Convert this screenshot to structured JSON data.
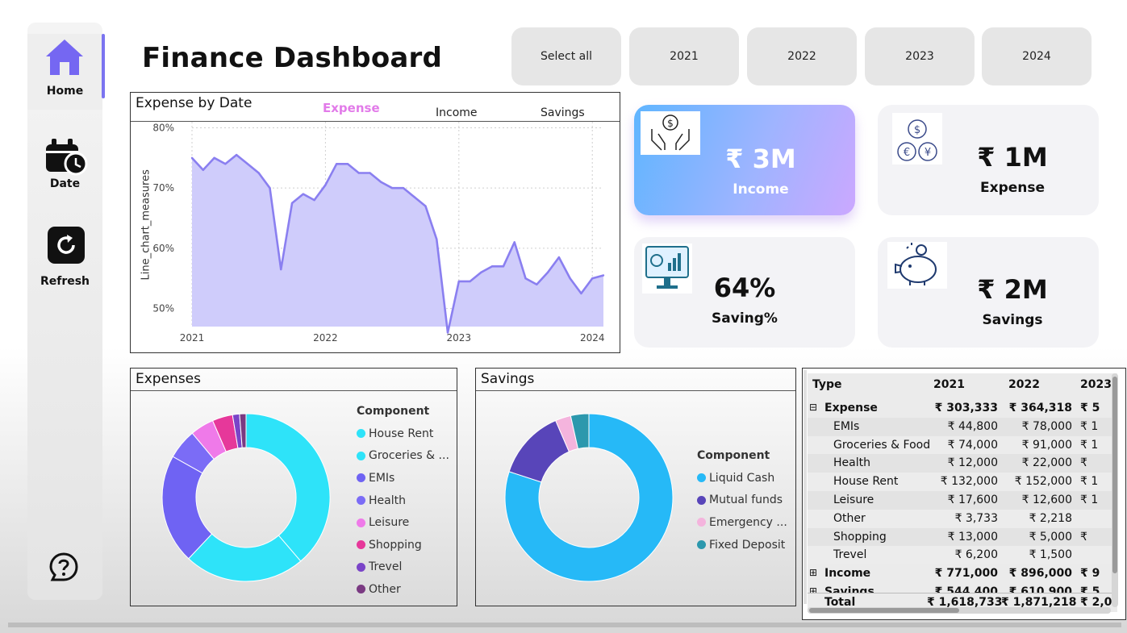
{
  "sidebar": {
    "items": [
      {
        "label": "Home",
        "icon": "home-icon"
      },
      {
        "label": "Date",
        "icon": "calendar-clock-icon"
      },
      {
        "label": "Refresh",
        "icon": "refresh-icon"
      }
    ],
    "help_icon": "help-bubble-icon"
  },
  "header": {
    "title": "Finance Dashboard"
  },
  "slicer": {
    "options": [
      "Select all",
      "2021",
      "2022",
      "2023",
      "2024"
    ]
  },
  "line_chart": {
    "title": "Expense by Date",
    "tabs": [
      "Expense",
      "Income",
      "Savings"
    ],
    "active_tab": "Expense",
    "ylabel": "Line_chart_measures",
    "y_ticks": [
      "80%",
      "70%",
      "60%",
      "50%"
    ],
    "x_ticks": [
      "2021",
      "2022",
      "2023",
      "2024"
    ]
  },
  "kpis": {
    "income": {
      "value": "₹ 3M",
      "label": "Income",
      "icon": "hands-money-icon"
    },
    "expense": {
      "value": "₹ 1M",
      "label": "Expense",
      "icon": "currency-coins-icon"
    },
    "saving_pct": {
      "value": "64%",
      "label": "Saving%",
      "icon": "monitor-chart-icon"
    },
    "savings": {
      "value": "₹ 2M",
      "label": "Savings",
      "icon": "piggy-bank-icon"
    }
  },
  "expenses_donut": {
    "title": "Expenses",
    "legend_title": "Component",
    "legend": [
      {
        "label": "House Rent",
        "color": "#2ee3f9"
      },
      {
        "label": "Groceries & ...",
        "color": "#2ee3f9"
      },
      {
        "label": "EMIs",
        "color": "#6f63f3"
      },
      {
        "label": "Health",
        "color": "#7b6cf6"
      },
      {
        "label": "Leisure",
        "color": "#ef7ae9"
      },
      {
        "label": "Shopping",
        "color": "#e6389a"
      },
      {
        "label": "Trevel",
        "color": "#7a44c8"
      },
      {
        "label": "Other",
        "color": "#7a3a82"
      }
    ]
  },
  "savings_donut": {
    "title": "Savings",
    "legend_title": "Component",
    "legend": [
      {
        "label": "Liquid Cash",
        "color": "#26b9f7"
      },
      {
        "label": "Mutual funds",
        "color": "#5845b9"
      },
      {
        "label": "Emergency ...",
        "color": "#f4b4dd"
      },
      {
        "label": "Fixed Deposit",
        "color": "#2c98ad"
      }
    ]
  },
  "chart_data": [
    {
      "type": "area",
      "title": "Expense by Date",
      "xlabel": "",
      "ylabel": "Line_chart_measures",
      "x": [
        "2021-01",
        "2021-02",
        "2021-03",
        "2021-04",
        "2021-05",
        "2021-06",
        "2021-07",
        "2021-08",
        "2021-09",
        "2021-10",
        "2021-11",
        "2021-12",
        "2022-01",
        "2022-02",
        "2022-03",
        "2022-04",
        "2022-05",
        "2022-06",
        "2022-07",
        "2022-08",
        "2022-09",
        "2022-10",
        "2022-11",
        "2022-12",
        "2023-01",
        "2023-02",
        "2023-03",
        "2023-04",
        "2023-05",
        "2023-06",
        "2023-07",
        "2023-08",
        "2023-09",
        "2023-10",
        "2023-11",
        "2023-12",
        "2024-01",
        "2024-02"
      ],
      "values": [
        75,
        73,
        75,
        74,
        75.5,
        74,
        72.5,
        70,
        56.5,
        67.5,
        69,
        68,
        70.5,
        74,
        74,
        72.5,
        72.5,
        71,
        70,
        70,
        68.5,
        67,
        61.5,
        46,
        54.5,
        54.5,
        56,
        57,
        57,
        61,
        55,
        54,
        56,
        58.5,
        55,
        52.5,
        55,
        55.5
      ],
      "ylim": [
        47,
        81
      ],
      "unit": "%",
      "grid": true
    },
    {
      "type": "pie",
      "title": "Expenses",
      "labels": [
        "House Rent",
        "Groceries & Food",
        "EMIs",
        "Health",
        "Leisure",
        "Shopping",
        "Trevel",
        "Other"
      ],
      "values": [
        37.4,
        22.5,
        20.4,
        5.6,
        4.4,
        3.8,
        1.3,
        1.2
      ]
    },
    {
      "type": "pie",
      "title": "Savings",
      "labels": [
        "Liquid Cash",
        "Mutual funds",
        "Emergency ...",
        "Fixed Deposit"
      ],
      "values": [
        80,
        13.5,
        3,
        3.5
      ]
    }
  ],
  "matrix": {
    "columns": [
      "Type",
      "2021",
      "2022",
      "2023"
    ],
    "rows": [
      {
        "type": "Expense",
        "bold": true,
        "expander": "⊟",
        "v2021": "₹ 303,333",
        "v2022": "₹ 364,318",
        "v2023": "₹ 5"
      },
      {
        "type": "EMIs",
        "indent": true,
        "v2021": "₹ 44,800",
        "v2022": "₹ 78,000",
        "v2023": "₹ 1"
      },
      {
        "type": "Groceries & Food",
        "indent": true,
        "v2021": "₹ 74,000",
        "v2022": "₹ 91,000",
        "v2023": "₹ 1"
      },
      {
        "type": "Health",
        "indent": true,
        "v2021": "₹ 12,000",
        "v2022": "₹ 22,000",
        "v2023": "₹"
      },
      {
        "type": "House Rent",
        "indent": true,
        "v2021": "₹ 132,000",
        "v2022": "₹ 152,000",
        "v2023": "₹ 1"
      },
      {
        "type": "Leisure",
        "indent": true,
        "v2021": "₹ 17,600",
        "v2022": "₹ 12,600",
        "v2023": "₹ 1"
      },
      {
        "type": "Other",
        "indent": true,
        "v2021": "₹ 3,733",
        "v2022": "₹ 2,218",
        "v2023": ""
      },
      {
        "type": "Shopping",
        "indent": true,
        "v2021": "₹ 13,000",
        "v2022": "₹ 5,000",
        "v2023": "₹"
      },
      {
        "type": "Trevel",
        "indent": true,
        "v2021": "₹ 6,200",
        "v2022": "₹ 1,500",
        "v2023": ""
      },
      {
        "type": "Income",
        "bold": true,
        "expander": "⊞",
        "v2021": "₹ 771,000",
        "v2022": "₹ 896,000",
        "v2023": "₹ 9"
      },
      {
        "type": "Savings",
        "bold": true,
        "expander": "⊞",
        "v2021": "₹ 544,400",
        "v2022": "₹ 610,900",
        "v2023": "₹ 5"
      }
    ],
    "total": {
      "type": "Total",
      "v2021": "₹ 1,618,733",
      "v2022": "₹ 1,871,218",
      "v2023": "₹ 2,0"
    }
  }
}
